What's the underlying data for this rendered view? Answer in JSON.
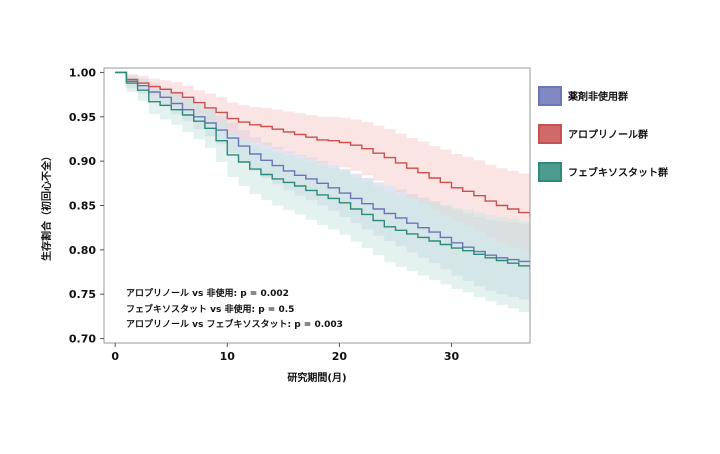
{
  "chart_data": {
    "type": "line",
    "xlabel": "研究期間(月)",
    "ylabel": "生存割合（初回心不全）",
    "xlim": [
      -1,
      37
    ],
    "ylim": [
      0.695,
      1.005
    ],
    "xticks": [
      0,
      10,
      20,
      30
    ],
    "yticks": [
      0.7,
      0.75,
      0.8,
      0.85,
      0.9,
      0.95,
      1.0
    ],
    "grid": false,
    "legend_position": "right",
    "annotations": [
      "アロプリノール vs 非使用: p = 0.002",
      "フェブキソスタット vs 非使用: p = 0.5",
      "アロプリノール vs フェブキソスタット: p = 0.003"
    ],
    "series": [
      {
        "name": "薬剤非使用群",
        "color": "#6b74b8",
        "band_color": "#c8cde6",
        "x": [
          0,
          1,
          2,
          3,
          4,
          5,
          6,
          7,
          8,
          9,
          10,
          11,
          12,
          13,
          14,
          15,
          16,
          17,
          18,
          19,
          20,
          21,
          22,
          23,
          24,
          25,
          26,
          27,
          28,
          29,
          30,
          31,
          32,
          33,
          34,
          35,
          36,
          37
        ],
        "y": [
          1.0,
          0.99,
          0.985,
          0.978,
          0.972,
          0.965,
          0.958,
          0.95,
          0.943,
          0.935,
          0.926,
          0.917,
          0.908,
          0.901,
          0.895,
          0.889,
          0.884,
          0.88,
          0.875,
          0.87,
          0.864,
          0.858,
          0.852,
          0.846,
          0.841,
          0.836,
          0.83,
          0.825,
          0.82,
          0.814,
          0.808,
          0.803,
          0.798,
          0.794,
          0.791,
          0.789,
          0.787,
          0.786
        ],
        "lower": [
          1.0,
          0.982,
          0.976,
          0.968,
          0.961,
          0.953,
          0.945,
          0.936,
          0.928,
          0.919,
          0.909,
          0.899,
          0.889,
          0.881,
          0.874,
          0.867,
          0.861,
          0.856,
          0.85,
          0.844,
          0.837,
          0.83,
          0.823,
          0.816,
          0.81,
          0.804,
          0.797,
          0.791,
          0.785,
          0.778,
          0.771,
          0.765,
          0.759,
          0.754,
          0.75,
          0.747,
          0.744,
          0.742
        ],
        "upper": [
          1.0,
          0.996,
          0.993,
          0.988,
          0.983,
          0.977,
          0.971,
          0.964,
          0.958,
          0.951,
          0.943,
          0.935,
          0.927,
          0.921,
          0.916,
          0.911,
          0.907,
          0.904,
          0.9,
          0.896,
          0.891,
          0.886,
          0.881,
          0.876,
          0.872,
          0.868,
          0.863,
          0.859,
          0.855,
          0.85,
          0.845,
          0.841,
          0.837,
          0.834,
          0.832,
          0.831,
          0.83,
          0.83
        ]
      },
      {
        "name": "アロプリノール群",
        "color": "#c8504f",
        "band_color": "#f5cdcd",
        "x": [
          0,
          1,
          2,
          3,
          4,
          5,
          6,
          7,
          8,
          9,
          10,
          11,
          12,
          13,
          14,
          15,
          16,
          17,
          18,
          19,
          20,
          21,
          22,
          23,
          24,
          25,
          26,
          27,
          28,
          29,
          30,
          31,
          32,
          33,
          34,
          35,
          36,
          37
        ],
        "y": [
          1.0,
          0.992,
          0.988,
          0.984,
          0.981,
          0.977,
          0.972,
          0.966,
          0.96,
          0.955,
          0.948,
          0.944,
          0.941,
          0.939,
          0.936,
          0.933,
          0.93,
          0.927,
          0.924,
          0.923,
          0.921,
          0.918,
          0.914,
          0.909,
          0.904,
          0.898,
          0.892,
          0.887,
          0.881,
          0.876,
          0.87,
          0.866,
          0.861,
          0.855,
          0.85,
          0.846,
          0.842,
          0.837
        ],
        "lower": [
          1.0,
          0.985,
          0.98,
          0.974,
          0.97,
          0.964,
          0.958,
          0.951,
          0.944,
          0.937,
          0.93,
          0.925,
          0.921,
          0.918,
          0.914,
          0.91,
          0.906,
          0.902,
          0.898,
          0.896,
          0.893,
          0.889,
          0.884,
          0.878,
          0.872,
          0.865,
          0.858,
          0.852,
          0.845,
          0.839,
          0.832,
          0.827,
          0.821,
          0.814,
          0.808,
          0.803,
          0.798,
          0.791
        ],
        "upper": [
          1.0,
          0.998,
          0.996,
          0.993,
          0.991,
          0.989,
          0.985,
          0.98,
          0.976,
          0.972,
          0.966,
          0.963,
          0.961,
          0.96,
          0.958,
          0.956,
          0.954,
          0.952,
          0.95,
          0.95,
          0.949,
          0.947,
          0.944,
          0.94,
          0.936,
          0.931,
          0.926,
          0.922,
          0.917,
          0.913,
          0.908,
          0.905,
          0.901,
          0.896,
          0.892,
          0.889,
          0.886,
          0.883
        ]
      },
      {
        "name": "フェブキソスタット群",
        "color": "#2e8a78",
        "band_color": "#cce8e2",
        "x": [
          0,
          1,
          2,
          3,
          4,
          5,
          6,
          7,
          8,
          9,
          10,
          11,
          12,
          13,
          14,
          15,
          16,
          17,
          18,
          19,
          20,
          21,
          22,
          23,
          24,
          25,
          26,
          27,
          28,
          29,
          30,
          31,
          32,
          33,
          34,
          35,
          36,
          37
        ],
        "y": [
          1.0,
          0.988,
          0.98,
          0.967,
          0.963,
          0.958,
          0.952,
          0.945,
          0.937,
          0.923,
          0.907,
          0.899,
          0.891,
          0.885,
          0.88,
          0.876,
          0.872,
          0.867,
          0.862,
          0.858,
          0.853,
          0.846,
          0.84,
          0.833,
          0.826,
          0.822,
          0.818,
          0.814,
          0.81,
          0.806,
          0.802,
          0.799,
          0.795,
          0.791,
          0.788,
          0.785,
          0.782,
          0.778
        ],
        "lower": [
          1.0,
          0.978,
          0.968,
          0.953,
          0.947,
          0.941,
          0.933,
          0.925,
          0.915,
          0.899,
          0.882,
          0.872,
          0.863,
          0.856,
          0.85,
          0.845,
          0.84,
          0.834,
          0.828,
          0.823,
          0.817,
          0.809,
          0.802,
          0.794,
          0.786,
          0.781,
          0.776,
          0.771,
          0.766,
          0.761,
          0.756,
          0.752,
          0.747,
          0.742,
          0.738,
          0.734,
          0.73,
          0.725
        ],
        "upper": [
          1.0,
          0.997,
          0.992,
          0.981,
          0.978,
          0.975,
          0.97,
          0.965,
          0.958,
          0.946,
          0.932,
          0.925,
          0.918,
          0.913,
          0.909,
          0.906,
          0.903,
          0.899,
          0.895,
          0.892,
          0.888,
          0.882,
          0.877,
          0.871,
          0.865,
          0.862,
          0.859,
          0.856,
          0.853,
          0.85,
          0.847,
          0.845,
          0.842,
          0.839,
          0.837,
          0.835,
          0.833,
          0.83
        ]
      }
    ]
  }
}
